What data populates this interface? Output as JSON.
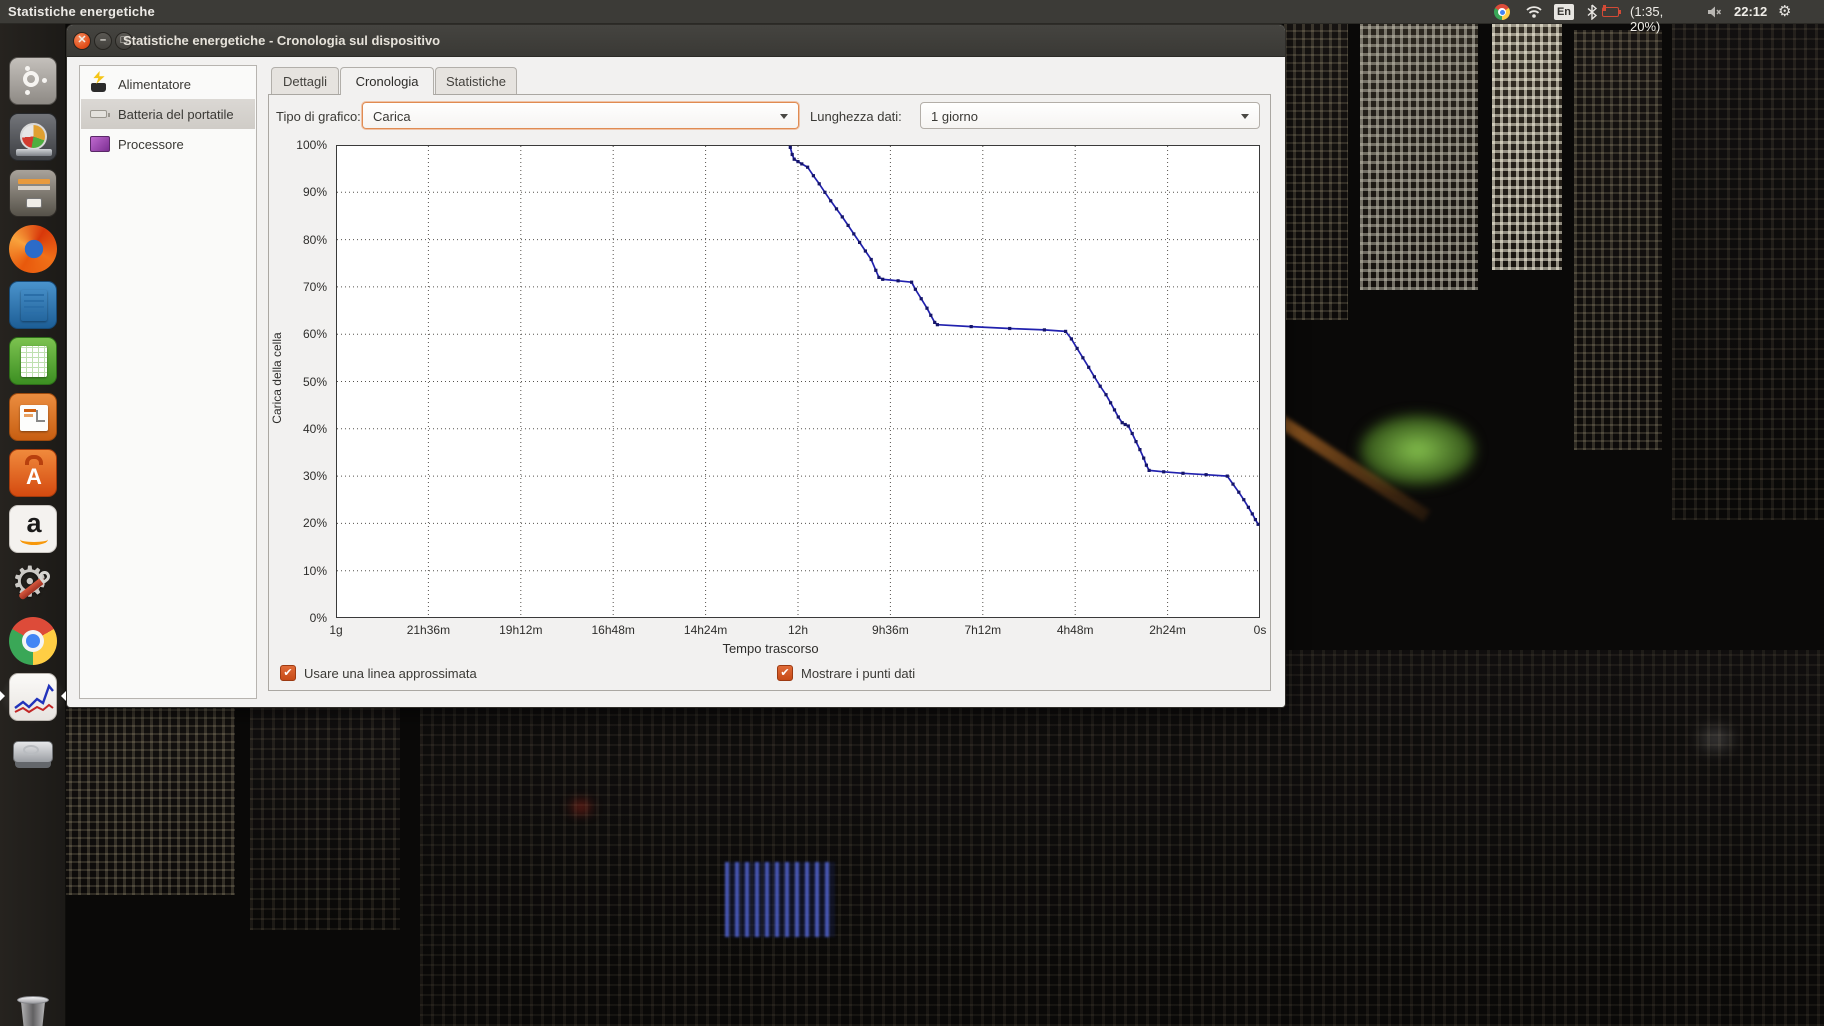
{
  "topbar": {
    "app_title": "Statistiche energetiche",
    "tray": {
      "icons": [
        "chrome-icon",
        "wifi-icon",
        "keyboard-indicator",
        "bluetooth-icon",
        "battery-icon",
        "volume-muted-icon",
        "clock",
        "session-gear-icon"
      ],
      "keyboard_layout": "En",
      "battery_status": "(1:35, 20%)",
      "time": "22:12"
    }
  },
  "launcher": {
    "items": [
      {
        "id": "dash",
        "icon": "ubuntu-dash-icon"
      },
      {
        "id": "baobab",
        "icon": "disk-usage-analyzer-icon"
      },
      {
        "id": "archive",
        "icon": "file-archiver-icon"
      },
      {
        "id": "firefox",
        "icon": "firefox-icon"
      },
      {
        "id": "writer",
        "icon": "libreoffice-writer-icon"
      },
      {
        "id": "calc",
        "icon": "libreoffice-calc-icon"
      },
      {
        "id": "impress",
        "icon": "libreoffice-impress-icon"
      },
      {
        "id": "software",
        "icon": "software-center-icon"
      },
      {
        "id": "amazon",
        "icon": "amazon-icon"
      },
      {
        "id": "settings",
        "icon": "system-settings-icon"
      },
      {
        "id": "chromium",
        "icon": "chromium-icon"
      },
      {
        "id": "stats",
        "icon": "power-statistics-icon",
        "active": true
      },
      {
        "id": "disk",
        "icon": "hard-disk-icon"
      },
      {
        "id": "trash",
        "icon": "trash-icon"
      }
    ]
  },
  "window": {
    "title": "Statistiche energetiche - Cronologia sul dispositivo",
    "buttons": [
      "close",
      "minimize",
      "maximize"
    ]
  },
  "sidebar": {
    "items": [
      {
        "label": "Alimentatore",
        "icon": "ac-adapter-icon",
        "selected": false
      },
      {
        "label": "Batteria del portatile",
        "icon": "laptop-battery-icon",
        "selected": true
      },
      {
        "label": "Processore",
        "icon": "processor-icon",
        "selected": false
      }
    ]
  },
  "tabs": [
    {
      "label": "Dettagli",
      "active": false
    },
    {
      "label": "Cronologia",
      "active": true
    },
    {
      "label": "Statistiche",
      "active": false
    }
  ],
  "controls": {
    "graph_type_label": "Tipo di grafico:",
    "graph_type_value": "Carica",
    "data_length_label": "Lunghezza dati:",
    "data_length_value": "1 giorno"
  },
  "chart_data": {
    "type": "line",
    "title": "",
    "xlabel": "Tempo trascorso",
    "ylabel": "Carica della cella",
    "x_tick_labels": [
      "1g",
      "21h36m",
      "19h12m",
      "16h48m",
      "14h24m",
      "12h",
      "9h36m",
      "7h12m",
      "4h48m",
      "2h24m",
      "0s"
    ],
    "y_tick_labels": [
      "0%",
      "10%",
      "20%",
      "30%",
      "40%",
      "50%",
      "60%",
      "70%",
      "80%",
      "90%",
      "100%"
    ],
    "x_range_hours_ago": [
      24,
      0
    ],
    "ylim": [
      0,
      100
    ],
    "grid": "dotted",
    "legend": "none",
    "line_color": "#2121ae",
    "point_color": "#15156a",
    "series": [
      {
        "name": "Carica",
        "points_hours_ago_vs_percent": [
          [
            12.2,
            99.5
          ],
          [
            12.15,
            98
          ],
          [
            12.1,
            97
          ],
          [
            12.0,
            96.5
          ],
          [
            11.9,
            96
          ],
          [
            11.75,
            95.3
          ],
          [
            11.6,
            93.5
          ],
          [
            11.45,
            91.8
          ],
          [
            11.3,
            90
          ],
          [
            11.15,
            88.2
          ],
          [
            11.0,
            86.5
          ],
          [
            10.85,
            84.8
          ],
          [
            10.7,
            83
          ],
          [
            10.55,
            81.2
          ],
          [
            10.4,
            79.4
          ],
          [
            10.25,
            77.6
          ],
          [
            10.1,
            75.8
          ],
          [
            9.98,
            73.5
          ],
          [
            9.9,
            72
          ],
          [
            9.8,
            71.6
          ],
          [
            9.4,
            71.3
          ],
          [
            9.05,
            71
          ],
          [
            8.95,
            69.5
          ],
          [
            8.8,
            67.5
          ],
          [
            8.65,
            65.5
          ],
          [
            8.55,
            64
          ],
          [
            8.45,
            62.5
          ],
          [
            8.38,
            62
          ],
          [
            7.5,
            61.6
          ],
          [
            6.5,
            61.2
          ],
          [
            5.6,
            60.9
          ],
          [
            5.05,
            60.6
          ],
          [
            4.9,
            59
          ],
          [
            4.75,
            57
          ],
          [
            4.6,
            55
          ],
          [
            4.45,
            53
          ],
          [
            4.3,
            51
          ],
          [
            4.15,
            49
          ],
          [
            4.0,
            47.2
          ],
          [
            3.88,
            45.5
          ],
          [
            3.78,
            44
          ],
          [
            3.68,
            42.5
          ],
          [
            3.58,
            41.3
          ],
          [
            3.5,
            40.9
          ],
          [
            3.42,
            40.6
          ],
          [
            3.32,
            39
          ],
          [
            3.22,
            37.3
          ],
          [
            3.12,
            35.6
          ],
          [
            3.02,
            33.8
          ],
          [
            2.95,
            32.3
          ],
          [
            2.88,
            31.2
          ],
          [
            2.5,
            30.9
          ],
          [
            2.0,
            30.6
          ],
          [
            1.4,
            30.3
          ],
          [
            0.85,
            30
          ],
          [
            0.7,
            28.3
          ],
          [
            0.55,
            26.6
          ],
          [
            0.42,
            25
          ],
          [
            0.3,
            23.4
          ],
          [
            0.2,
            22
          ],
          [
            0.12,
            20.8
          ],
          [
            0.05,
            19.8
          ]
        ]
      }
    ]
  },
  "checkboxes": [
    {
      "label": "Usare una linea approssimata",
      "checked": true
    },
    {
      "label": "Mostrare i punti dati",
      "checked": true
    }
  ]
}
